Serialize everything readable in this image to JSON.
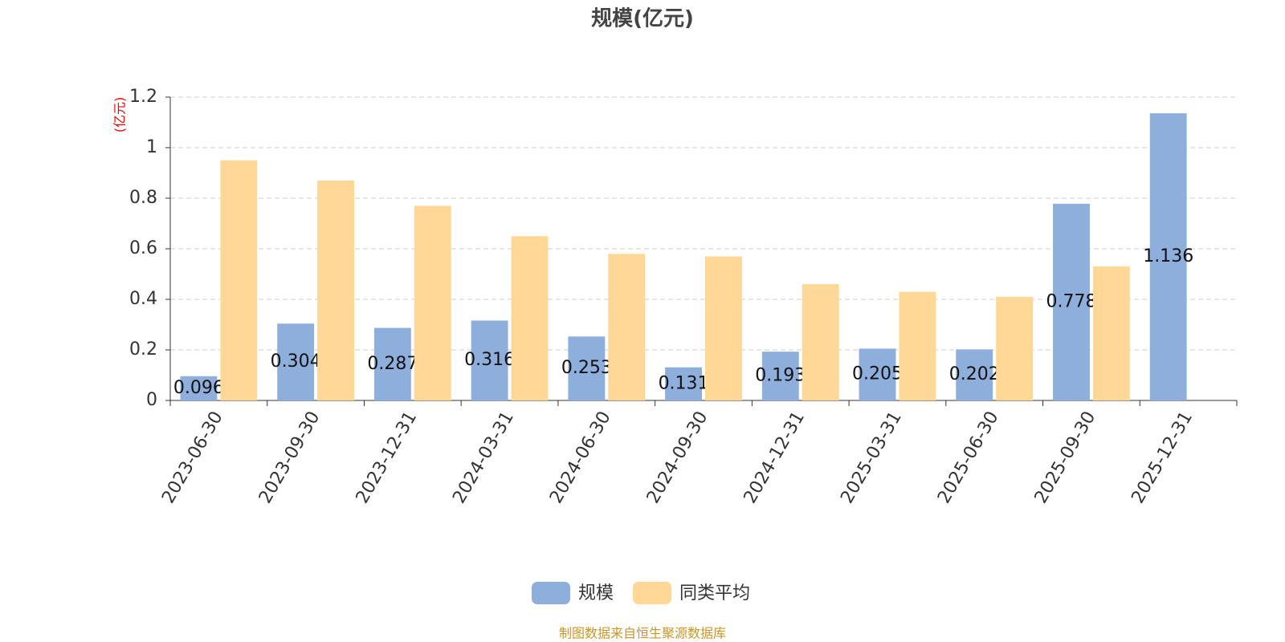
{
  "chart_data": {
    "type": "bar",
    "title": "规模(亿元)",
    "y_label": "(亿元)",
    "categories": [
      "2023-06-30",
      "2023-09-30",
      "2023-12-31",
      "2024-03-31",
      "2024-06-30",
      "2024-09-30",
      "2024-12-31",
      "2025-03-31",
      "2025-06-30",
      "2025-09-30",
      "2025-12-31"
    ],
    "series": [
      {
        "name": "规模",
        "color": "#8eaedb",
        "values": [
          0.096,
          0.304,
          0.287,
          0.316,
          0.253,
          0.131,
          0.193,
          0.205,
          0.202,
          0.778,
          1.136
        ],
        "show_labels": true
      },
      {
        "name": "同类平均",
        "color": "#ffd898",
        "values": [
          0.95,
          0.87,
          0.77,
          0.65,
          0.58,
          0.57,
          0.46,
          0.43,
          0.41,
          0.53,
          null
        ],
        "show_labels": false
      }
    ],
    "ylim": [
      0,
      1.2
    ],
    "yticks": [
      0,
      0.2,
      0.4,
      0.6,
      0.8,
      1,
      1.2
    ],
    "grid": true,
    "source": "制图数据来自恒生聚源数据库"
  }
}
